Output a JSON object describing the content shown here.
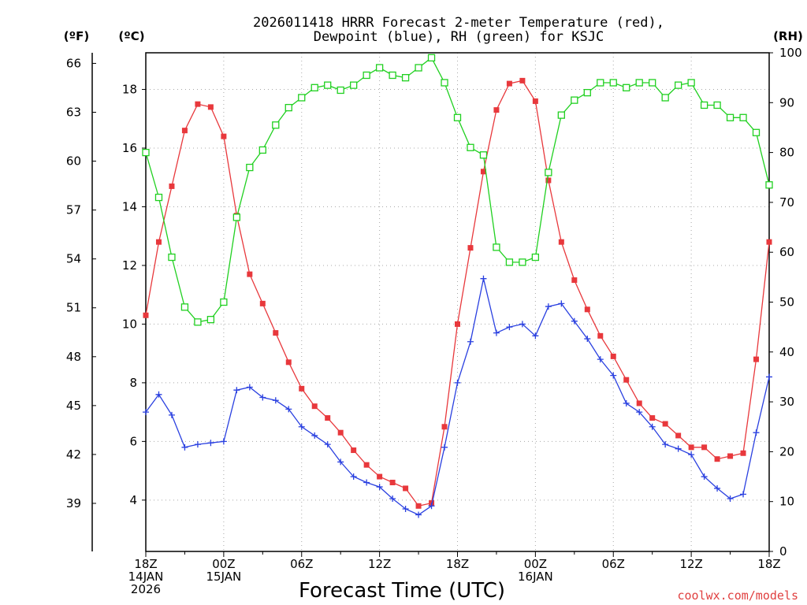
{
  "chart_data": {
    "type": "line",
    "title_line1": "2026011418 HRRR Forecast 2-meter Temperature (red),",
    "title_line2": "Dewpoint (blue), RH (green) for KSJC",
    "xlabel": "Forecast Time (UTC)",
    "credit": "coolwx.com/models",
    "units": {
      "fahrenheit": "(ºF)",
      "celsius": "(ºC)",
      "rh": "(RH)"
    },
    "x": [
      0,
      1,
      2,
      3,
      4,
      5,
      6,
      7,
      8,
      9,
      10,
      11,
      12,
      13,
      14,
      15,
      16,
      17,
      18,
      19,
      20,
      21,
      22,
      23,
      24,
      25,
      26,
      27,
      28,
      29,
      30,
      31,
      32,
      33,
      34,
      35,
      36,
      37,
      38,
      39,
      40,
      41,
      42,
      43,
      44,
      45,
      46,
      47,
      48
    ],
    "xlim": [
      0,
      48
    ],
    "celsius_lim": [
      2.25,
      19.25
    ],
    "fahrenheit_lim": [
      36.05,
      66.65
    ],
    "rh_lim": [
      0,
      100
    ],
    "x_ticks": [
      {
        "x": 0,
        "lines": [
          "18Z",
          "14JAN",
          "2026"
        ]
      },
      {
        "x": 6,
        "lines": [
          "00Z",
          "15JAN"
        ]
      },
      {
        "x": 12,
        "lines": [
          "06Z"
        ]
      },
      {
        "x": 18,
        "lines": [
          "12Z"
        ]
      },
      {
        "x": 24,
        "lines": [
          "18Z"
        ]
      },
      {
        "x": 30,
        "lines": [
          "00Z",
          "16JAN"
        ]
      },
      {
        "x": 36,
        "lines": [
          "06Z"
        ]
      },
      {
        "x": 42,
        "lines": [
          "12Z"
        ]
      },
      {
        "x": 48,
        "lines": [
          "18Z"
        ]
      }
    ],
    "celsius_ticks": [
      "4",
      "6",
      "8",
      "10",
      "12",
      "14",
      "16",
      "18"
    ],
    "fahrenheit_ticks": [
      "39",
      "42",
      "45",
      "48",
      "51",
      "54",
      "57",
      "60",
      "63",
      "66"
    ],
    "rh_ticks": [
      "0",
      "10",
      "20",
      "30",
      "40",
      "50",
      "60",
      "70",
      "80",
      "90",
      "100"
    ],
    "series": [
      {
        "name": "Temperature",
        "axis": "celsius",
        "color": "#e8383c",
        "marker": "filled-square",
        "values": [
          10.3,
          12.8,
          14.7,
          16.6,
          17.5,
          17.4,
          16.4,
          13.7,
          11.7,
          10.7,
          9.7,
          8.7,
          7.8,
          7.2,
          6.8,
          6.3,
          5.7,
          5.2,
          4.8,
          4.6,
          4.4,
          3.8,
          3.9,
          6.5,
          10.0,
          12.6,
          15.2,
          17.3,
          18.2,
          18.3,
          17.6,
          14.9,
          12.8,
          11.5,
          10.5,
          9.6,
          8.9,
          8.1,
          7.3,
          6.8,
          6.6,
          6.2,
          5.8,
          5.8,
          5.4,
          5.5,
          5.6,
          8.8,
          12.8
        ]
      },
      {
        "name": "Dewpoint",
        "axis": "celsius",
        "color": "#2a40e0",
        "marker": "plus",
        "values": [
          7.0,
          7.6,
          6.9,
          5.8,
          5.9,
          5.95,
          6.0,
          7.75,
          7.85,
          7.5,
          7.4,
          7.1,
          6.5,
          6.2,
          5.9,
          5.3,
          4.8,
          4.6,
          4.45,
          4.05,
          3.7,
          3.5,
          3.8,
          5.8,
          8.0,
          9.4,
          11.55,
          9.7,
          9.9,
          10.0,
          9.6,
          10.6,
          10.7,
          10.1,
          9.5,
          8.8,
          8.25,
          7.3,
          7.0,
          6.5,
          5.9,
          5.75,
          5.55,
          4.8,
          4.4,
          4.05,
          4.2,
          6.3,
          8.2
        ]
      },
      {
        "name": "RH",
        "axis": "rh",
        "color": "#20d020",
        "marker": "open-square",
        "values": [
          80,
          71,
          59,
          49,
          46,
          46.5,
          50,
          67,
          77,
          80.5,
          85.5,
          89,
          91,
          93,
          93.5,
          92.5,
          93.5,
          95.5,
          97,
          95.5,
          95,
          97,
          99,
          94,
          87,
          81,
          79.5,
          61,
          58,
          58,
          59,
          76,
          87.5,
          90.5,
          92,
          94,
          94,
          93,
          94,
          94,
          91,
          93.5,
          94,
          89.5,
          89.5,
          87,
          87,
          84,
          73.5
        ]
      }
    ]
  }
}
